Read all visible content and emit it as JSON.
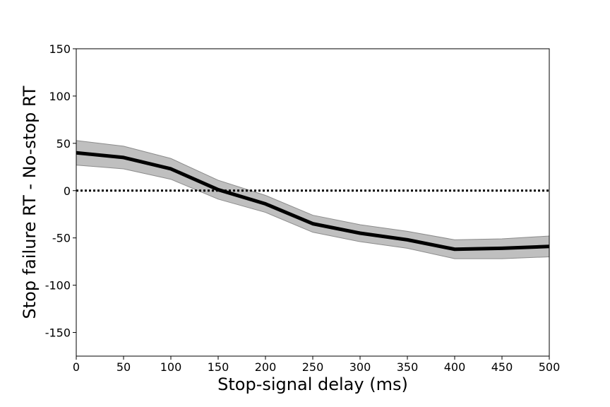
{
  "chart_data": {
    "type": "line",
    "title": "",
    "xlabel": "Stop-signal delay (ms)",
    "ylabel": "Stop failure RT - No-stop RT",
    "xlim": [
      0,
      500
    ],
    "ylim": [
      -175,
      150
    ],
    "xticks": [
      0,
      50,
      100,
      150,
      200,
      250,
      300,
      350,
      400,
      450,
      500
    ],
    "yticks": [
      150,
      100,
      50,
      0,
      -50,
      -100,
      -150
    ],
    "grid": false,
    "reference_line": {
      "y": 0,
      "style": "dotted",
      "color": "#000000"
    },
    "series": [
      {
        "x": [
          0,
          50,
          100,
          150,
          200,
          250,
          300,
          350,
          400,
          450,
          500
        ],
        "values": [
          40,
          35,
          23,
          1,
          -14,
          -35,
          -45,
          -52,
          -62,
          -61,
          -59
        ],
        "lower": [
          27,
          23,
          12,
          -9,
          -23,
          -44,
          -54,
          -61,
          -72,
          -72,
          -70
        ],
        "upper": [
          53,
          47,
          34,
          11,
          -5,
          -26,
          -36,
          -43,
          -52,
          -51,
          -48
        ],
        "color": "#000000",
        "band_color": "#bfbfbf"
      }
    ]
  }
}
